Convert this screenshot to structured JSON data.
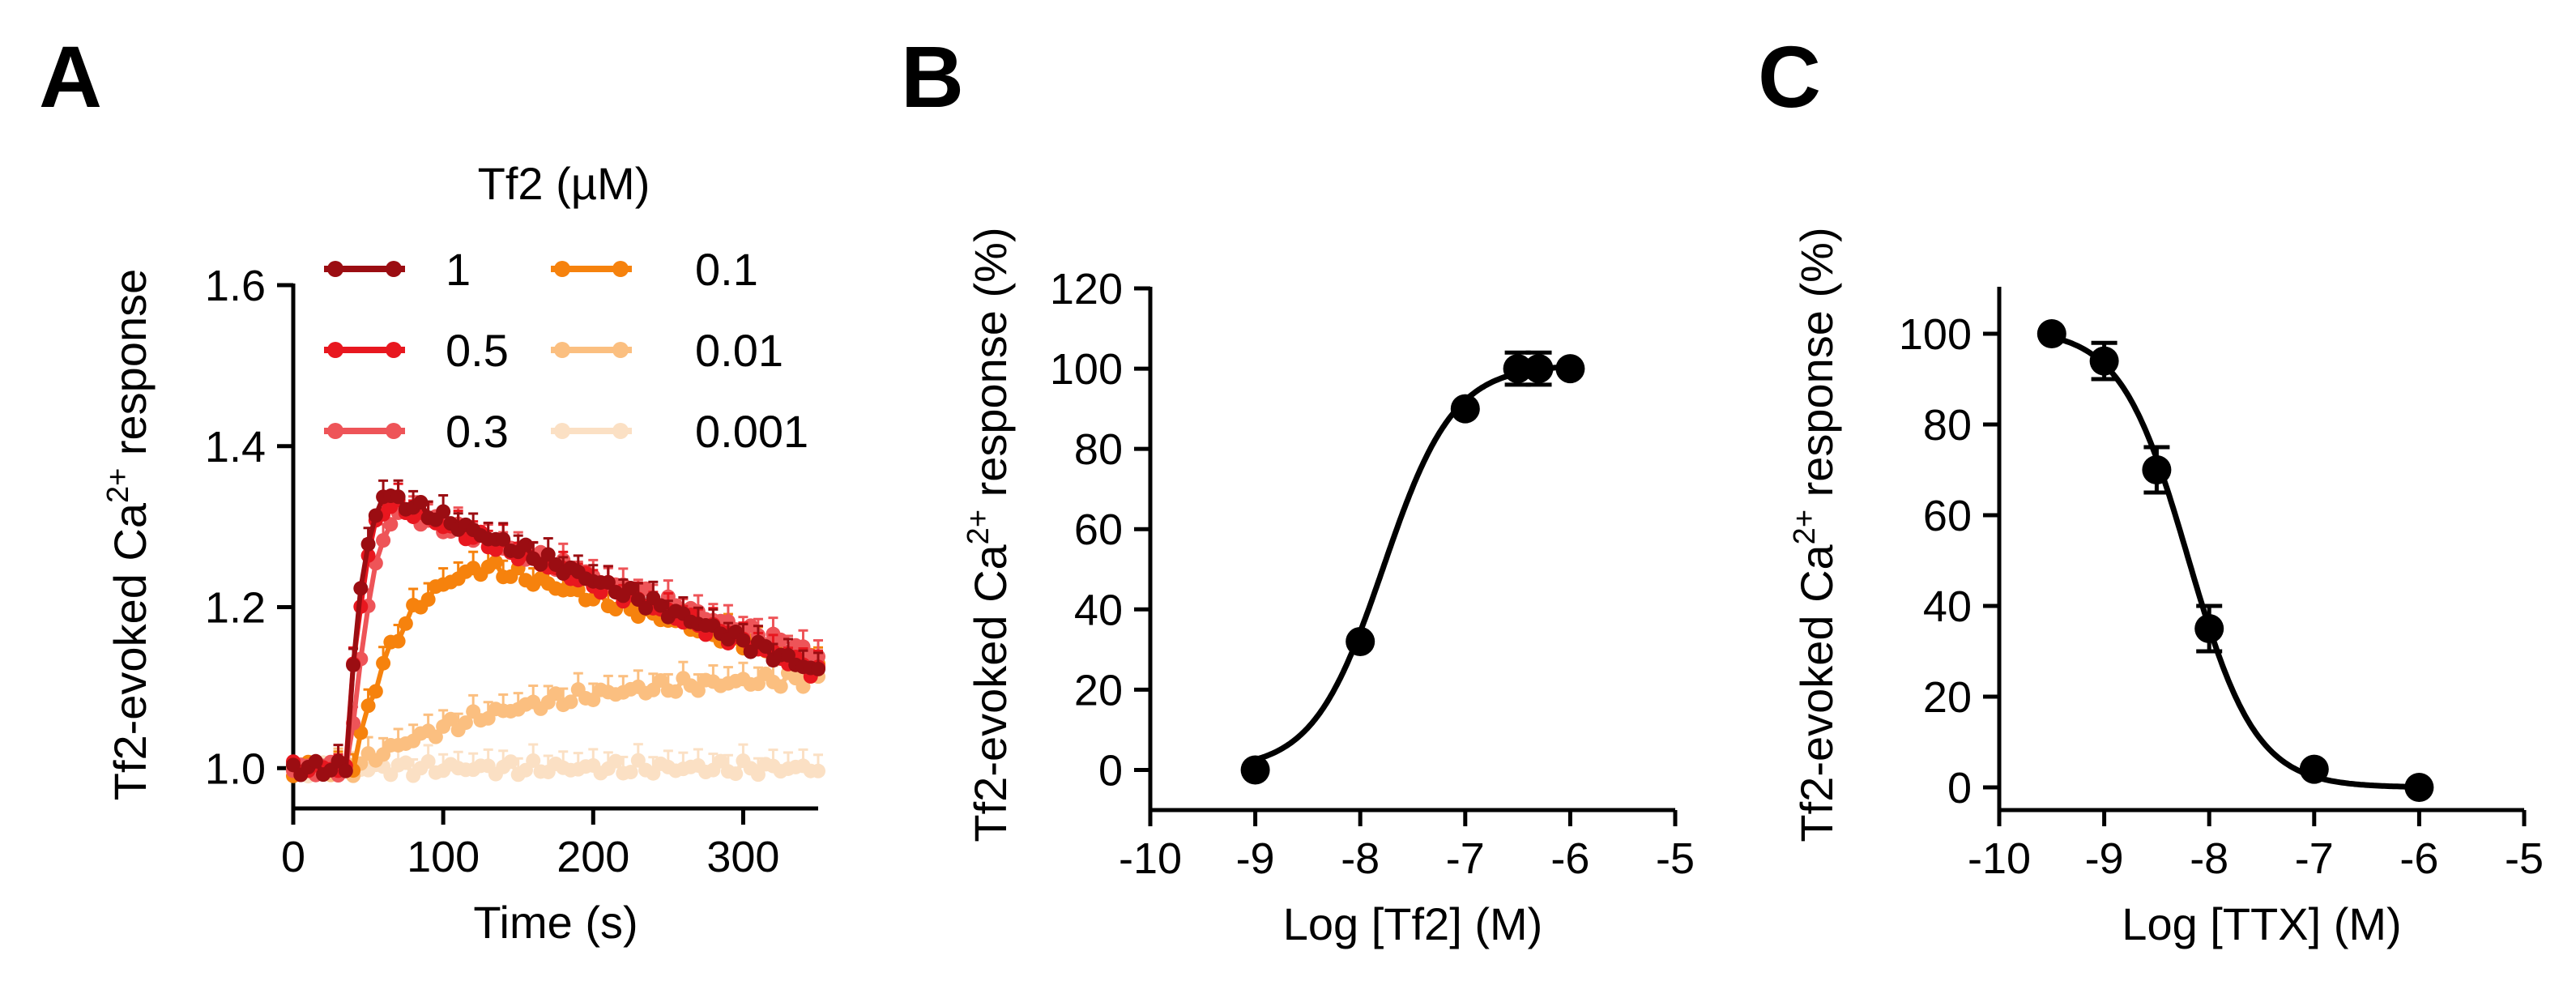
{
  "chart_data": [
    {
      "panel": "A",
      "type": "line",
      "xlabel": "Time (s)",
      "ylabel_prefix": "Tf2-evoked Ca",
      "ylabel_superscript": "2+",
      "ylabel_suffix": " response",
      "xlim": [
        0,
        350
      ],
      "ylim": [
        0.95,
        1.6
      ],
      "xticks": [
        0,
        100,
        200,
        300
      ],
      "xticklabels": [
        "0",
        "100",
        "200",
        "300"
      ],
      "yticks": [
        1.0,
        1.2,
        1.4,
        1.6
      ],
      "yticklabels": [
        "1.0",
        "1.2",
        "1.4",
        "1.6"
      ],
      "legend_title": "Tf2 (µM)",
      "legend_position": "top-inside",
      "series": [
        {
          "name": "1",
          "color": "#9b0d12",
          "onset": 35,
          "peak_time": 60,
          "peak": 1.34,
          "plateau": 1.12,
          "rise": 12
        },
        {
          "name": "0.5",
          "color": "#e8171f",
          "onset": 35,
          "peak_time": 62,
          "peak": 1.33,
          "plateau": 1.12,
          "rise": 12
        },
        {
          "name": "0.3",
          "color": "#ee5458",
          "onset": 38,
          "peak_time": 70,
          "peak": 1.32,
          "plateau": 1.14,
          "rise": 14
        },
        {
          "name": "0.1",
          "color": "#f6820d",
          "onset": 40,
          "peak_time": 130,
          "peak": 1.25,
          "plateau": 1.13,
          "rise": 30
        },
        {
          "name": "0.01",
          "color": "#fbbf80",
          "onset": 40,
          "peak_time": 330,
          "peak": 1.11,
          "plateau": 1.11,
          "rise": 110
        },
        {
          "name": "0.001",
          "color": "#fbe0c4",
          "onset": 40,
          "peak_time": 340,
          "peak": 1.0,
          "plateau": 1.0,
          "rise": 50
        }
      ]
    },
    {
      "panel": "B",
      "type": "scatter",
      "xlabel": "Log [Tf2] (M)",
      "ylabel_prefix": "Tf2-evoked Ca",
      "ylabel_superscript": "2+",
      "ylabel_suffix": " response (%)",
      "xlim": [
        -10,
        -5
      ],
      "ylim": [
        -10,
        120
      ],
      "xticks": [
        -10,
        -9,
        -8,
        -7,
        -6,
        -5
      ],
      "xticklabels": [
        "-10",
        "-9",
        "-8",
        "-7",
        "-6",
        "-5"
      ],
      "yticks": [
        0,
        20,
        40,
        60,
        80,
        100,
        120
      ],
      "yticklabels": [
        "0",
        "20",
        "40",
        "60",
        "80",
        "100",
        "120"
      ],
      "x": [
        -9,
        -8,
        -7,
        -6.5,
        -6.3,
        -6
      ],
      "y": [
        0,
        32,
        90,
        100,
        100,
        100
      ],
      "yerr": [
        0,
        0,
        0,
        4,
        4,
        0
      ],
      "fit": {
        "bottom": 0,
        "top": 101,
        "logEC50": -7.78,
        "hill": 1.3
      }
    },
    {
      "panel": "C",
      "type": "scatter",
      "xlabel": "Log [TTX] (M)",
      "ylabel_prefix": "Tf2-evoked Ca",
      "ylabel_superscript": "2+",
      "ylabel_suffix": " response (%)",
      "xlim": [
        -10,
        -5
      ],
      "ylim": [
        -5,
        110
      ],
      "xticks": [
        -10,
        -9,
        -8,
        -7,
        -6,
        -5
      ],
      "xticklabels": [
        "-10",
        "-9",
        "-8",
        "-7",
        "-6",
        "-5"
      ],
      "yticks": [
        0,
        20,
        40,
        60,
        80,
        100
      ],
      "yticklabels": [
        "0",
        "20",
        "40",
        "60",
        "80",
        "100"
      ],
      "x": [
        -9.5,
        -9,
        -8.5,
        -8,
        -7,
        -6
      ],
      "y": [
        100,
        94,
        70,
        35,
        4,
        0
      ],
      "yerr": [
        0,
        4,
        5,
        5,
        0,
        0
      ],
      "fit": {
        "bottom": 0,
        "top": 101,
        "logIC50": -8.2,
        "hill": -1.35
      }
    }
  ],
  "panel_labels": [
    "A",
    "B",
    "C"
  ]
}
